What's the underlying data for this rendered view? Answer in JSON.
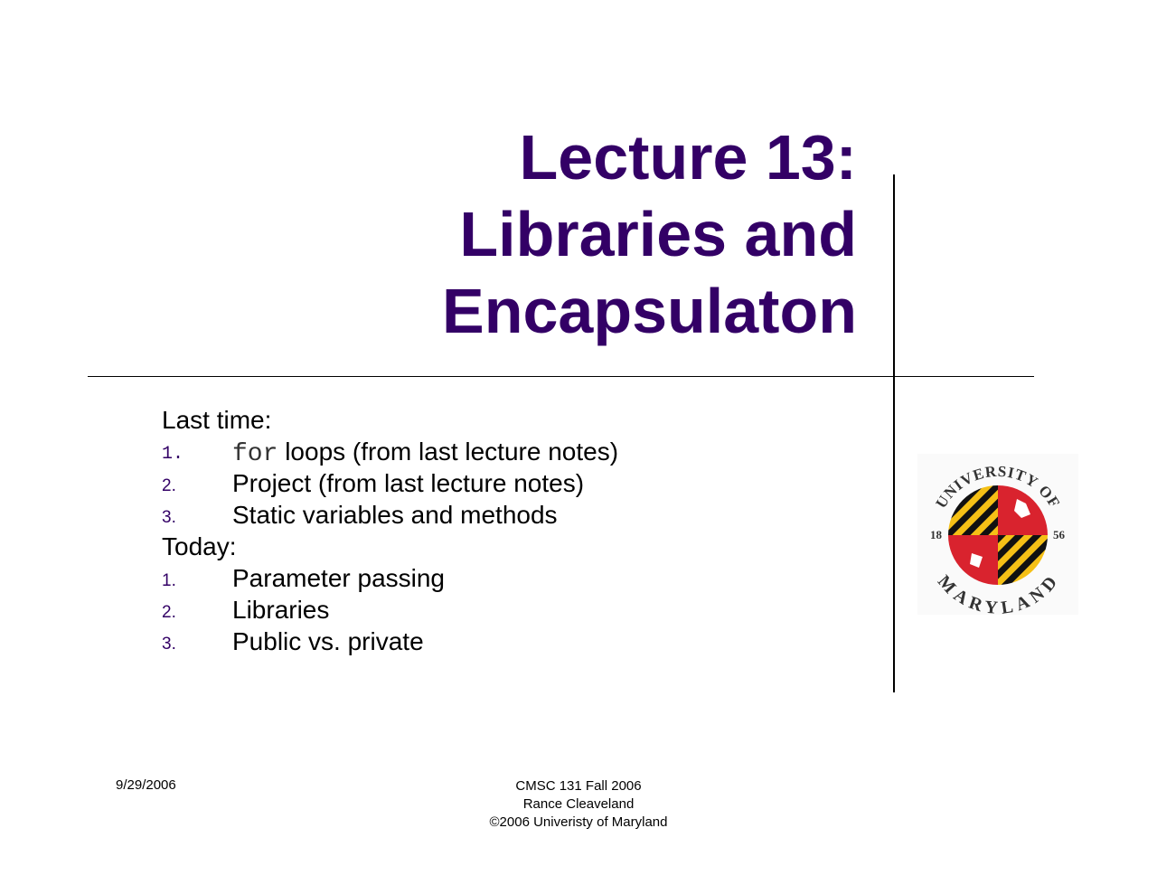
{
  "title": {
    "lines": [
      "Lecture 13:",
      "Libraries and",
      "Encapsulaton"
    ]
  },
  "body": {
    "last_time_label": "Last time:",
    "last_time_items": [
      {
        "num": "1.",
        "code": "for",
        "text": " loops (from last lecture notes)"
      },
      {
        "num": "2.",
        "text": "Project (from last lecture notes)"
      },
      {
        "num": "3.",
        "text": "Static variables and methods"
      }
    ],
    "today_label": "Today:",
    "today_items": [
      {
        "num": "1.",
        "text": "Parameter passing"
      },
      {
        "num": "2.",
        "text": "Libraries"
      },
      {
        "num": "3.",
        "text": "Public vs. private"
      }
    ]
  },
  "footer": {
    "date": "9/29/2006",
    "course": "CMSC 131 Fall 2006",
    "author": "Rance Cleaveland",
    "copyright": "©2006 Univeristy of Maryland"
  },
  "logo": {
    "top_text": "UNIVERSITY OF",
    "bottom_text": "MARYLAND",
    "year_left": "18",
    "year_right": "56"
  },
  "colors": {
    "title": "#330066",
    "flag_red": "#d9232e",
    "flag_gold": "#f5c016"
  }
}
